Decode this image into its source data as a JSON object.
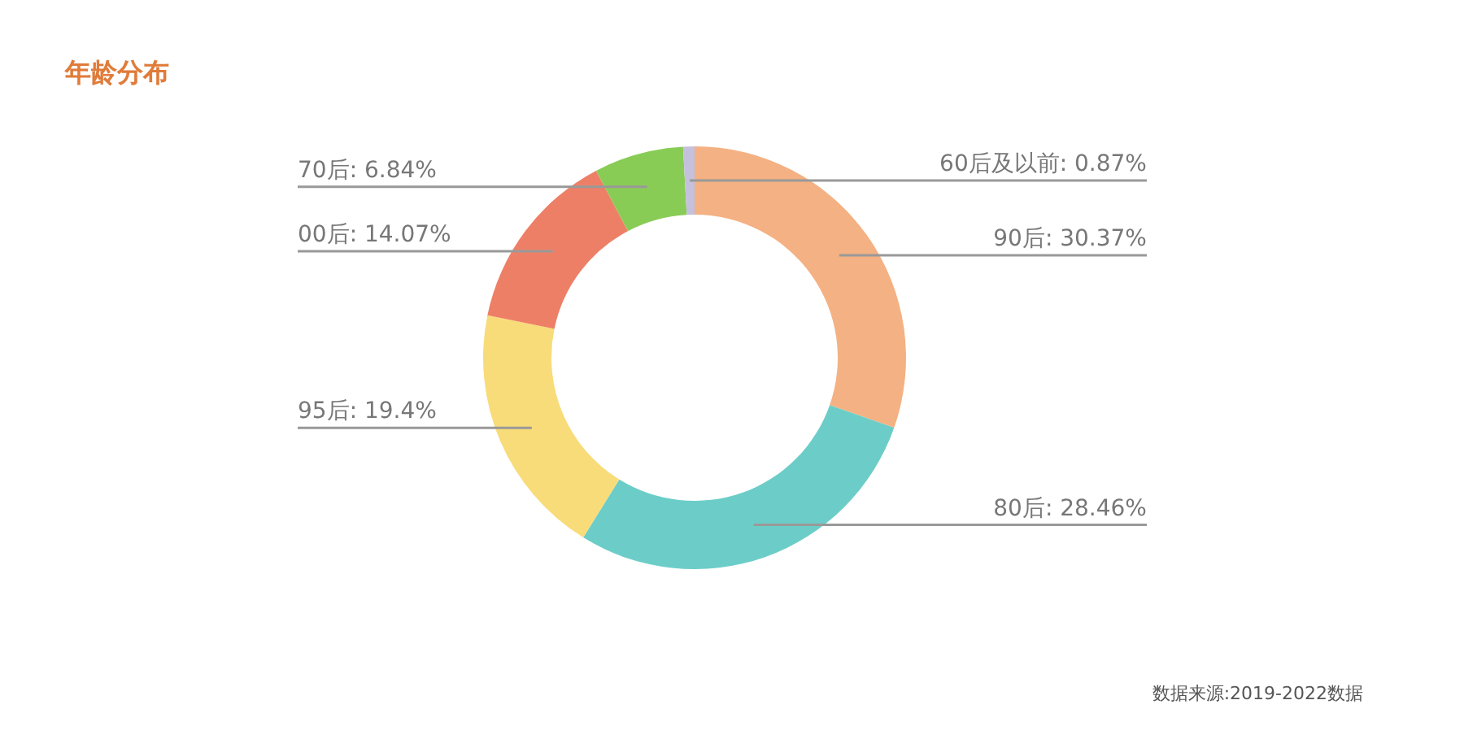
{
  "chart_data": {
    "type": "donut",
    "title": "年龄分布",
    "categories": [
      null,
      null,
      null,
      null,
      null,
      null
    ],
    "values": [
      30.37,
      28.46,
      19.4,
      14.07,
      6.84,
      0.87
    ],
    "colors": [
      "#f4b183",
      "#6ccdc8",
      "#f8dc7a",
      "#ee7f67",
      "#88cc55",
      "#c5c0dc"
    ],
    "value_labels": [
      "90后: 30.37%",
      "80后: 28.46%",
      "95后: 19.4%",
      "00后: 14.07%",
      "70后: 6.84%",
      "60后及以前: 0.87%"
    ],
    "annotations": [
      "数据来源:2019-2022数据"
    ]
  }
}
